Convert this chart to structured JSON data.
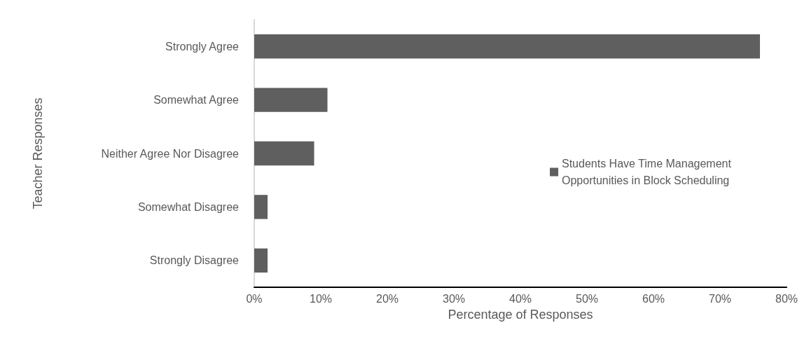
{
  "chart_data": {
    "type": "bar",
    "orientation": "horizontal",
    "xlabel": "Percentage of Responses",
    "ylabel": "Teacher Responses",
    "categories": [
      "Strongly Agree",
      "Somewhat Agree",
      "Neither Agree Nor Disagree",
      "Somewhat Disagree",
      "Strongly Disagree"
    ],
    "series": [
      {
        "name": "Students Have Time Management Opportunities in Block Scheduling",
        "color": "#5f5f5f",
        "values": [
          76,
          11,
          9,
          2,
          2
        ]
      }
    ],
    "xlim": [
      0,
      80
    ],
    "xticks": [
      {
        "value": 0,
        "label": "0%"
      },
      {
        "value": 10,
        "label": "10%"
      },
      {
        "value": 20,
        "label": "20%"
      },
      {
        "value": 30,
        "label": "30%"
      },
      {
        "value": 40,
        "label": "40%"
      },
      {
        "value": 50,
        "label": "50%"
      },
      {
        "value": 60,
        "label": "60%"
      },
      {
        "value": 70,
        "label": "70%"
      },
      {
        "value": 80,
        "label": "80%"
      }
    ],
    "grid": false,
    "legend": "right"
  }
}
